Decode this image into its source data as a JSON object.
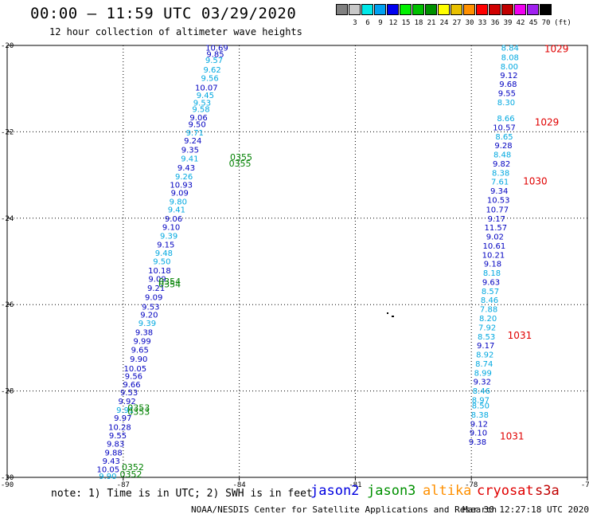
{
  "header": {
    "title": "00:00 – 11:59 UTC 03/29/2020",
    "subtitle": "12 hour collection of altimeter wave heights"
  },
  "scale": {
    "unit_label": "(ft)",
    "bins": [
      {
        "label": "",
        "color": "#808080"
      },
      {
        "label": "3",
        "color": "#c8c8c8"
      },
      {
        "label": "6",
        "color": "#00e8e8"
      },
      {
        "label": "9",
        "color": "#00a0f0"
      },
      {
        "label": "12",
        "color": "#0000f0"
      },
      {
        "label": "15",
        "color": "#00f000"
      },
      {
        "label": "18",
        "color": "#00c000"
      },
      {
        "label": "21",
        "color": "#009000"
      },
      {
        "label": "24",
        "color": "#ffff00"
      },
      {
        "label": "27",
        "color": "#e8c000"
      },
      {
        "label": "30",
        "color": "#ff9000"
      },
      {
        "label": "33",
        "color": "#ff0000"
      },
      {
        "label": "36",
        "color": "#d00000"
      },
      {
        "label": "39",
        "color": "#c00000"
      },
      {
        "label": "42",
        "color": "#f000f0"
      },
      {
        "label": "45",
        "color": "#a020f0"
      },
      {
        "label": "70",
        "color": "#000000"
      }
    ]
  },
  "footer": {
    "note": "note: 1) Time is in UTC; 2) SWH is in feet",
    "missions": [
      {
        "name": "jason2",
        "color": "#0000e0"
      },
      {
        "name": "jason3",
        "color": "#009000"
      },
      {
        "name": "altika",
        "color": "#ff9000"
      },
      {
        "name": "cryosat",
        "color": "#e00000"
      },
      {
        "name": "s3a",
        "color": "#c00000"
      }
    ],
    "credit": "NOAA/NESDIS Center for Satellite Applications and Research",
    "timestamp": "Mar 30 12:27:18 UTC 2020"
  },
  "chart_data": {
    "type": "scatter",
    "title": "00:00 – 11:59 UTC 03/29/2020",
    "xlim": [
      -90,
      -75
    ],
    "ylim": [
      -30,
      -20
    ],
    "x_ticks": [
      "-90",
      "-87",
      "-84",
      "-81",
      "-78",
      "-75"
    ],
    "y_ticks": [
      "-20",
      "-22",
      "-24",
      "-26",
      "-28",
      "-30"
    ],
    "grid": true,
    "colors": {
      "dark": "#0000c0",
      "light": "#00a8e0",
      "time": "#008000",
      "pressure": "#e00000"
    },
    "tracks": [
      {
        "name": "track-west",
        "points": [
          {
            "x": -84.58,
            "y": -20.05,
            "v": "10.69",
            "c": "dark"
          },
          {
            "x": -84.62,
            "y": -20.19,
            "v": "9.85",
            "c": "dark"
          },
          {
            "x": -84.65,
            "y": -20.33,
            "v": "9.57",
            "c": "light"
          },
          {
            "x": -84.7,
            "y": -20.55,
            "v": "9.62",
            "c": "light"
          },
          {
            "x": -84.76,
            "y": -20.75,
            "v": "9.56",
            "c": "light"
          },
          {
            "x": -84.85,
            "y": -20.97,
            "v": "10.07",
            "c": "dark"
          },
          {
            "x": -84.88,
            "y": -21.14,
            "v": "9.45",
            "c": "light"
          },
          {
            "x": -84.96,
            "y": -21.32,
            "v": "9.53",
            "c": "light"
          },
          {
            "x": -84.99,
            "y": -21.47,
            "v": "9.58",
            "c": "light"
          },
          {
            "x": -85.05,
            "y": -21.66,
            "v": "9.06",
            "c": "dark"
          },
          {
            "x": -85.09,
            "y": -21.82,
            "v": "9.50",
            "c": "dark"
          },
          {
            "x": -85.15,
            "y": -22.01,
            "v": "9.71",
            "c": "light"
          },
          {
            "x": -85.2,
            "y": -22.2,
            "v": "9.24",
            "c": "dark"
          },
          {
            "x": -85.27,
            "y": -22.41,
            "v": "9.35",
            "c": "dark"
          },
          {
            "x": -85.28,
            "y": -22.61,
            "v": "9.41",
            "c": "light"
          },
          {
            "x": -85.37,
            "y": -22.82,
            "v": "9.43",
            "c": "dark"
          },
          {
            "x": -85.43,
            "y": -23.03,
            "v": "9.26",
            "c": "light"
          },
          {
            "x": -85.5,
            "y": -23.22,
            "v": "10.93",
            "c": "dark"
          },
          {
            "x": -85.54,
            "y": -23.4,
            "v": "9.09",
            "c": "dark"
          },
          {
            "x": -85.58,
            "y": -23.61,
            "v": "9.80",
            "c": "light"
          },
          {
            "x": -85.62,
            "y": -23.79,
            "v": "9.41",
            "c": "light"
          },
          {
            "x": -85.7,
            "y": -24.0,
            "v": "9.06",
            "c": "dark"
          },
          {
            "x": -85.76,
            "y": -24.2,
            "v": "9.10",
            "c": "dark"
          },
          {
            "x": -85.82,
            "y": -24.4,
            "v": "9.39",
            "c": "light"
          },
          {
            "x": -85.9,
            "y": -24.6,
            "v": "9.15",
            "c": "dark"
          },
          {
            "x": -85.95,
            "y": -24.8,
            "v": "9.48",
            "c": "light"
          },
          {
            "x": -86.0,
            "y": -24.99,
            "v": "9.50",
            "c": "light"
          },
          {
            "x": -86.06,
            "y": -25.2,
            "v": "10.18",
            "c": "dark"
          },
          {
            "x": -86.12,
            "y": -25.4,
            "v": "9.09",
            "c": "dark"
          },
          {
            "x": -86.15,
            "y": -25.61,
            "v": "9.21",
            "c": "dark"
          },
          {
            "x": -86.21,
            "y": -25.82,
            "v": "9.09",
            "c": "dark"
          },
          {
            "x": -86.29,
            "y": -26.04,
            "v": "9.53",
            "c": "dark"
          },
          {
            "x": -86.33,
            "y": -26.23,
            "v": "9.20",
            "c": "dark"
          },
          {
            "x": -86.38,
            "y": -26.42,
            "v": "9.39",
            "c": "light"
          },
          {
            "x": -86.46,
            "y": -26.63,
            "v": "9.38",
            "c": "dark"
          },
          {
            "x": -86.51,
            "y": -26.84,
            "v": "9.99",
            "c": "dark"
          },
          {
            "x": -86.57,
            "y": -27.04,
            "v": "9.65",
            "c": "dark"
          },
          {
            "x": -86.6,
            "y": -27.25,
            "v": "9.90",
            "c": "dark"
          },
          {
            "x": -86.69,
            "y": -27.47,
            "v": "10.05",
            "c": "dark"
          },
          {
            "x": -86.73,
            "y": -27.65,
            "v": "9.56",
            "c": "dark"
          },
          {
            "x": -86.78,
            "y": -27.84,
            "v": "9.66",
            "c": "dark"
          },
          {
            "x": -86.85,
            "y": -28.03,
            "v": "9.53",
            "c": "dark"
          },
          {
            "x": -86.9,
            "y": -28.23,
            "v": "9.92",
            "c": "dark"
          },
          {
            "x": -86.95,
            "y": -28.43,
            "v": "9.91",
            "c": "light"
          },
          {
            "x": -87.01,
            "y": -28.62,
            "v": "9.97",
            "c": "dark"
          },
          {
            "x": -87.09,
            "y": -28.83,
            "v": "10.28",
            "c": "dark"
          },
          {
            "x": -87.14,
            "y": -29.02,
            "v": "9.55",
            "c": "dark"
          },
          {
            "x": -87.2,
            "y": -29.22,
            "v": "9.83",
            "c": "dark"
          },
          {
            "x": -87.25,
            "y": -29.42,
            "v": "9.88",
            "c": "dark"
          },
          {
            "x": -87.31,
            "y": -29.61,
            "v": "9.43",
            "c": "dark"
          },
          {
            "x": -87.39,
            "y": -29.81,
            "v": "10.05",
            "c": "dark"
          },
          {
            "x": -87.4,
            "y": -29.96,
            "v": "9.90",
            "c": "light"
          }
        ]
      },
      {
        "name": "track-east",
        "points": [
          {
            "x": -77.0,
            "y": -20.05,
            "v": "8.84",
            "c": "light"
          },
          {
            "x": -77.0,
            "y": -20.27,
            "v": "8.08",
            "c": "light"
          },
          {
            "x": -77.02,
            "y": -20.48,
            "v": "8.00",
            "c": "light"
          },
          {
            "x": -77.03,
            "y": -20.68,
            "v": "9.12",
            "c": "dark"
          },
          {
            "x": -77.05,
            "y": -20.89,
            "v": "9.68",
            "c": "dark"
          },
          {
            "x": -77.08,
            "y": -21.1,
            "v": "9.55",
            "c": "dark"
          },
          {
            "x": -77.1,
            "y": -21.31,
            "v": "8.30",
            "c": "light"
          },
          {
            "x": -77.11,
            "y": -21.68,
            "v": "8.66",
            "c": "light"
          },
          {
            "x": -77.15,
            "y": -21.89,
            "v": "10.57",
            "c": "dark"
          },
          {
            "x": -77.15,
            "y": -22.1,
            "v": "8.65",
            "c": "light"
          },
          {
            "x": -77.17,
            "y": -22.31,
            "v": "9.28",
            "c": "dark"
          },
          {
            "x": -77.2,
            "y": -22.52,
            "v": "8.48",
            "c": "light"
          },
          {
            "x": -77.22,
            "y": -22.73,
            "v": "9.82",
            "c": "dark"
          },
          {
            "x": -77.24,
            "y": -22.94,
            "v": "8.38",
            "c": "light"
          },
          {
            "x": -77.26,
            "y": -23.15,
            "v": "7.61",
            "c": "light"
          },
          {
            "x": -77.28,
            "y": -23.36,
            "v": "9.34",
            "c": "dark"
          },
          {
            "x": -77.3,
            "y": -23.57,
            "v": "10.53",
            "c": "dark"
          },
          {
            "x": -77.33,
            "y": -23.79,
            "v": "10.77",
            "c": "dark"
          },
          {
            "x": -77.35,
            "y": -24.0,
            "v": "9.17",
            "c": "dark"
          },
          {
            "x": -77.37,
            "y": -24.21,
            "v": "11.57",
            "c": "dark"
          },
          {
            "x": -77.39,
            "y": -24.42,
            "v": "9.02",
            "c": "dark"
          },
          {
            "x": -77.41,
            "y": -24.63,
            "v": "10.61",
            "c": "dark"
          },
          {
            "x": -77.43,
            "y": -24.84,
            "v": "10.21",
            "c": "dark"
          },
          {
            "x": -77.45,
            "y": -25.05,
            "v": "9.18",
            "c": "dark"
          },
          {
            "x": -77.47,
            "y": -25.26,
            "v": "8.18",
            "c": "light"
          },
          {
            "x": -77.49,
            "y": -25.47,
            "v": "9.63",
            "c": "dark"
          },
          {
            "x": -77.51,
            "y": -25.68,
            "v": "8.57",
            "c": "light"
          },
          {
            "x": -77.53,
            "y": -25.89,
            "v": "8.46",
            "c": "light"
          },
          {
            "x": -77.55,
            "y": -26.1,
            "v": "7.88",
            "c": "light"
          },
          {
            "x": -77.57,
            "y": -26.31,
            "v": "8.20",
            "c": "light"
          },
          {
            "x": -77.59,
            "y": -26.52,
            "v": "7.92",
            "c": "light"
          },
          {
            "x": -77.61,
            "y": -26.73,
            "v": "8.53",
            "c": "light"
          },
          {
            "x": -77.63,
            "y": -26.94,
            "v": "9.17",
            "c": "dark"
          },
          {
            "x": -77.65,
            "y": -27.15,
            "v": "8.92",
            "c": "light"
          },
          {
            "x": -77.67,
            "y": -27.36,
            "v": "8.74",
            "c": "light"
          },
          {
            "x": -77.7,
            "y": -27.57,
            "v": "8.99",
            "c": "light"
          },
          {
            "x": -77.72,
            "y": -27.78,
            "v": "9.32",
            "c": "dark"
          },
          {
            "x": -77.74,
            "y": -27.99,
            "v": "8.46",
            "c": "light"
          },
          {
            "x": -77.76,
            "y": -28.2,
            "v": "8.97",
            "c": "light"
          },
          {
            "x": -77.76,
            "y": -28.33,
            "v": "8.50",
            "c": "light"
          },
          {
            "x": -77.78,
            "y": -28.54,
            "v": "8.38",
            "c": "light"
          },
          {
            "x": -77.8,
            "y": -28.75,
            "v": "9.12",
            "c": "dark"
          },
          {
            "x": -77.82,
            "y": -28.96,
            "v": "9.10",
            "c": "dark"
          },
          {
            "x": -77.84,
            "y": -29.17,
            "v": "9.38",
            "c": "dark"
          }
        ]
      }
    ],
    "time_labels": [
      {
        "x": -83.95,
        "y": -22.58,
        "v": "0355"
      },
      {
        "x": -83.98,
        "y": -22.73,
        "v": "0355"
      },
      {
        "x": -85.8,
        "y": -25.46,
        "v": "0354"
      },
      {
        "x": -85.8,
        "y": -25.53,
        "v": "0354"
      },
      {
        "x": -86.6,
        "y": -28.39,
        "v": "0353"
      },
      {
        "x": -86.6,
        "y": -28.48,
        "v": "0353"
      },
      {
        "x": -86.75,
        "y": -29.76,
        "v": "0352"
      },
      {
        "x": -86.8,
        "y": -29.93,
        "v": "0352"
      }
    ],
    "pressure_labels": [
      {
        "x": -75.8,
        "y": -20.08,
        "v": "1029"
      },
      {
        "x": -76.05,
        "y": -21.78,
        "v": "1029"
      },
      {
        "x": -76.35,
        "y": -23.15,
        "v": "1030"
      },
      {
        "x": -76.75,
        "y": -26.72,
        "v": "1031"
      },
      {
        "x": -76.95,
        "y": -29.05,
        "v": "1031"
      }
    ]
  }
}
